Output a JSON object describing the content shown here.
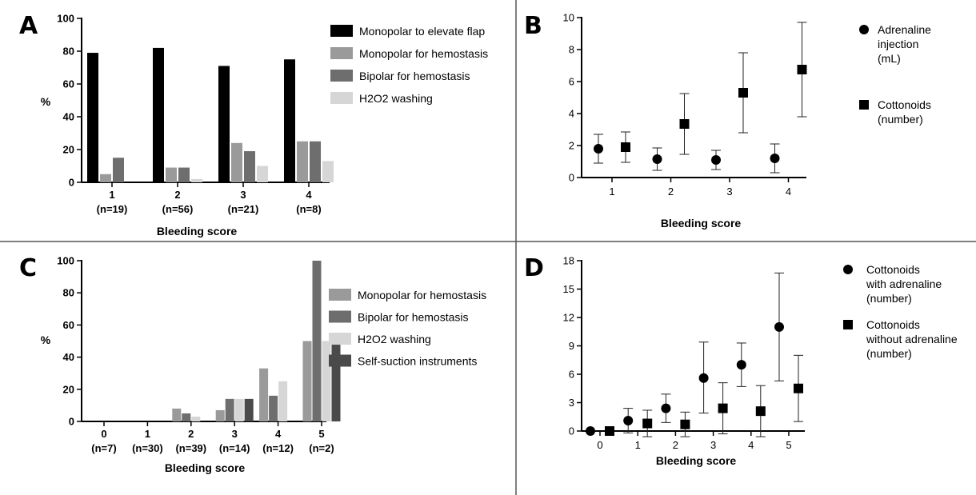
{
  "chart_data": [
    {
      "panel": "A",
      "type": "bar",
      "ylabel": "%",
      "xlabel": "Bleeding score",
      "ylim": [
        0,
        100
      ],
      "yticks": [
        0,
        20,
        40,
        60,
        80,
        100
      ],
      "categories": [
        "1",
        "2",
        "3",
        "4"
      ],
      "category_sub": [
        "(n=19)",
        "(n=56)",
        "(n=21)",
        "(n=8)"
      ],
      "series": [
        {
          "name": "Monopolar to elevate flap",
          "color": "#000000",
          "values": [
            79,
            82,
            71,
            75
          ]
        },
        {
          "name": "Monopolar for hemostasis",
          "color": "#9a9a9a",
          "values": [
            5,
            9,
            24,
            25
          ]
        },
        {
          "name": "Bipolar for hemostasis",
          "color": "#6e6e6e",
          "values": [
            15,
            9,
            19,
            25
          ]
        },
        {
          "name": "H2O2 washing",
          "color": "#d6d6d6",
          "values": [
            0,
            2,
            10,
            13
          ]
        }
      ],
      "legend": "right"
    },
    {
      "panel": "B",
      "type": "scatter",
      "xlabel": "Bleeding score",
      "ylim": [
        0,
        10
      ],
      "yticks": [
        0,
        2,
        4,
        6,
        8,
        10
      ],
      "categories": [
        "1",
        "2",
        "3",
        "4"
      ],
      "series": [
        {
          "name_lines": [
            "Adrenaline",
            "injection",
            "(mL)"
          ],
          "marker": "circle",
          "mean": [
            1.8,
            1.15,
            1.1,
            1.2
          ],
          "low": [
            0.9,
            0.45,
            0.5,
            0.3
          ],
          "high": [
            2.7,
            1.85,
            1.7,
            2.1
          ]
        },
        {
          "name_lines": [
            "Cottonoids",
            "(number)"
          ],
          "marker": "square",
          "mean": [
            1.9,
            3.35,
            5.3,
            6.75
          ],
          "low": [
            0.95,
            1.45,
            2.8,
            3.8
          ],
          "high": [
            2.85,
            5.25,
            7.8,
            9.7
          ]
        }
      ],
      "legend": "right"
    },
    {
      "panel": "C",
      "type": "bar",
      "ylabel": "%",
      "xlabel": "Bleeding score",
      "ylim": [
        0,
        100
      ],
      "yticks": [
        0,
        20,
        40,
        60,
        80,
        100
      ],
      "categories": [
        "0",
        "1",
        "2",
        "3",
        "4",
        "5"
      ],
      "category_sub": [
        "(n=7)",
        "(n=30)",
        "(n=39)",
        "(n=14)",
        "(n=12)",
        "(n=2)"
      ],
      "series": [
        {
          "name": "Monopolar for hemostasis",
          "color": "#9a9a9a",
          "values": [
            0,
            0,
            8,
            7,
            33,
            50
          ]
        },
        {
          "name": "Bipolar for hemostasis",
          "color": "#6e6e6e",
          "values": [
            0,
            0,
            5,
            14,
            16,
            100
          ]
        },
        {
          "name": "H2O2 washing",
          "color": "#d6d6d6",
          "values": [
            0,
            0,
            3,
            14,
            25,
            50
          ]
        },
        {
          "name": "Self-suction instruments",
          "color": "#4a4a4a",
          "values": [
            0,
            0,
            0,
            14,
            0,
            50
          ]
        }
      ],
      "legend": "right"
    },
    {
      "panel": "D",
      "type": "scatter",
      "xlabel": "Bleeding score",
      "ylim": [
        0,
        18
      ],
      "yticks": [
        0,
        3,
        6,
        9,
        12,
        15,
        18
      ],
      "categories": [
        "0",
        "1",
        "2",
        "3",
        "4",
        "5"
      ],
      "series": [
        {
          "name_lines": [
            "Cottonoids",
            "with adrenaline",
            "(number)"
          ],
          "marker": "circle",
          "mean": [
            0,
            1.1,
            2.4,
            5.6,
            7.0,
            11.0
          ],
          "low": [
            0,
            -0.2,
            0.9,
            1.9,
            4.7,
            5.3
          ],
          "high": [
            0,
            2.4,
            3.9,
            9.4,
            9.3,
            16.7
          ]
        },
        {
          "name_lines": [
            "Cottonoids",
            "without adrenaline",
            "(number)"
          ],
          "marker": "square",
          "mean": [
            0,
            0.8,
            0.7,
            2.4,
            2.1,
            4.5
          ],
          "low": [
            0,
            -0.6,
            -0.6,
            -0.3,
            -0.6,
            1.0
          ],
          "high": [
            0,
            2.2,
            2.0,
            5.1,
            4.8,
            8.0
          ]
        }
      ],
      "legend": "right"
    }
  ]
}
